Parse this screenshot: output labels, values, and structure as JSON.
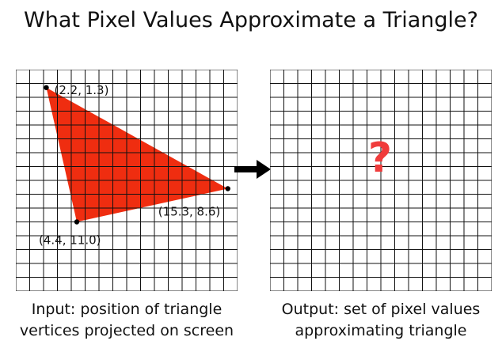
{
  "title": "What Pixel Values Approximate a Triangle?",
  "grid": {
    "columns": 16,
    "rows": 16,
    "line_color": "#111111"
  },
  "triangle": {
    "fill_color": "#ef2d10",
    "vertices": [
      {
        "x": 2.2,
        "y": 1.3,
        "label": "(2.2, 1.3)"
      },
      {
        "x": 15.3,
        "y": 8.6,
        "label": "(15.3, 8.6)"
      },
      {
        "x": 4.4,
        "y": 11.0,
        "label": "(4.4, 11.0)"
      }
    ]
  },
  "arrow_icon": "arrow-right-icon",
  "output_symbol": "?",
  "output_symbol_color": "#f03c3c",
  "captions": {
    "input_line1": "Input: position of triangle",
    "input_line2": "vertices projected on screen",
    "output_line1": "Output: set of pixel values",
    "output_line2": "approximating triangle"
  }
}
